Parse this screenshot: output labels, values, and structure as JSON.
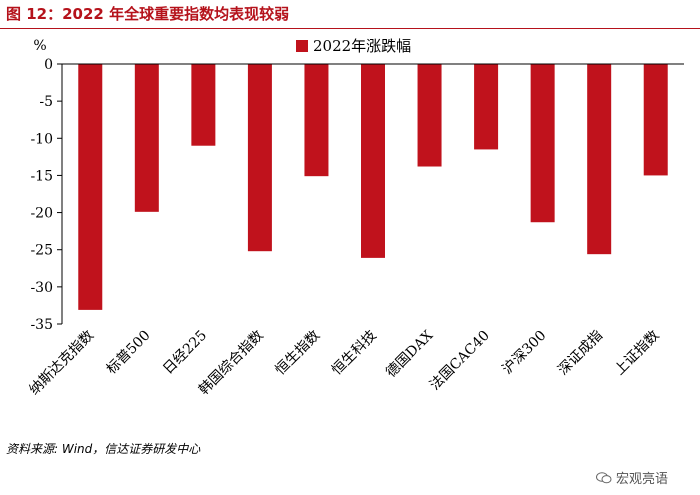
{
  "figure_title": "图 12：2022 年全球重要指数均表现较弱",
  "source_text": "资料来源: Wind，信达证券研发中心",
  "watermark_text": "宏观亮语",
  "colors": {
    "title": "#b5121b",
    "bar": "#c0121c",
    "axis": "#000000"
  },
  "chart_data": {
    "type": "bar",
    "unit_label": "%",
    "categories": [
      "纳斯达克指数",
      "标普500",
      "日经225",
      "韩国综合指数",
      "恒生指数",
      "恒生科技",
      "德国DAX",
      "法国CAC40",
      "沪深300",
      "深证成指",
      "上证指数"
    ],
    "series": [
      {
        "name": "2022年涨跌幅",
        "values": [
          -33.1,
          -19.9,
          -11.0,
          -25.2,
          -15.1,
          -26.1,
          -13.8,
          -11.5,
          -21.3,
          -25.6,
          -15.0
        ]
      }
    ],
    "yticks": [
      0,
      -5,
      -10,
      -15,
      -20,
      -25,
      -30,
      -35
    ],
    "ylim": [
      -35,
      0
    ],
    "legend_position": "top-center",
    "grid": false
  }
}
